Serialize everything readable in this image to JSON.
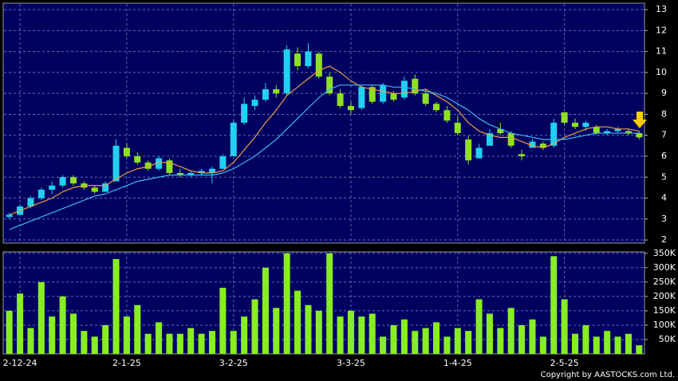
{
  "chart_data": [
    {
      "type": "candlestick",
      "ylim": [
        1.85,
        13.27
      ],
      "yticks": [
        2,
        3,
        4,
        5,
        6,
        7,
        8,
        9,
        10,
        11,
        12,
        13
      ],
      "grid": true,
      "up_color": "#22d0f0",
      "down_color": "#8ee022",
      "candles": [
        [
          3.1,
          3.3,
          3.0,
          3.2
        ],
        [
          3.2,
          3.7,
          3.2,
          3.6
        ],
        [
          3.6,
          4.1,
          3.5,
          4.0
        ],
        [
          4.0,
          4.5,
          3.9,
          4.4
        ],
        [
          4.4,
          4.8,
          4.2,
          4.6
        ],
        [
          4.6,
          5.1,
          4.5,
          5.0
        ],
        [
          5.0,
          5.1,
          4.6,
          4.7
        ],
        [
          4.7,
          4.8,
          4.4,
          4.5
        ],
        [
          4.5,
          4.6,
          4.2,
          4.3
        ],
        [
          4.3,
          4.8,
          4.3,
          4.7
        ],
        [
          4.8,
          6.8,
          4.8,
          6.5
        ],
        [
          6.4,
          6.6,
          5.9,
          6.0
        ],
        [
          6.0,
          6.2,
          5.6,
          5.7
        ],
        [
          5.7,
          5.8,
          5.3,
          5.4
        ],
        [
          5.4,
          6.0,
          5.3,
          5.9
        ],
        [
          5.8,
          5.9,
          5.1,
          5.2
        ],
        [
          5.2,
          5.4,
          5.0,
          5.1
        ],
        [
          5.1,
          5.3,
          5.0,
          5.2
        ],
        [
          5.2,
          5.4,
          5.1,
          5.3
        ],
        [
          5.2,
          5.5,
          4.7,
          5.4
        ],
        [
          5.4,
          6.1,
          5.4,
          6.0
        ],
        [
          6.0,
          7.7,
          6.0,
          7.6
        ],
        [
          7.6,
          8.8,
          7.5,
          8.5
        ],
        [
          8.4,
          8.9,
          8.2,
          8.7
        ],
        [
          8.7,
          9.5,
          8.6,
          9.2
        ],
        [
          9.2,
          9.4,
          8.8,
          9.0
        ],
        [
          9.0,
          11.3,
          8.9,
          11.1
        ],
        [
          10.9,
          11.2,
          10.1,
          10.3
        ],
        [
          10.3,
          11.4,
          10.2,
          11.0
        ],
        [
          10.9,
          11.0,
          9.7,
          9.8
        ],
        [
          9.8,
          10.0,
          8.9,
          9.0
        ],
        [
          9.0,
          9.2,
          8.3,
          8.4
        ],
        [
          8.4,
          8.6,
          8.0,
          8.2
        ],
        [
          8.3,
          9.4,
          8.2,
          9.3
        ],
        [
          9.3,
          9.4,
          8.5,
          8.6
        ],
        [
          8.6,
          9.5,
          8.5,
          9.4
        ],
        [
          9.0,
          9.1,
          8.6,
          8.7
        ],
        [
          8.8,
          9.8,
          8.7,
          9.6
        ],
        [
          9.7,
          9.9,
          8.9,
          9.0
        ],
        [
          9.0,
          9.2,
          8.4,
          8.5
        ],
        [
          8.5,
          8.6,
          8.1,
          8.2
        ],
        [
          8.2,
          8.4,
          7.6,
          7.7
        ],
        [
          7.6,
          7.9,
          7.0,
          7.1
        ],
        [
          6.8,
          7.0,
          5.6,
          5.8
        ],
        [
          5.9,
          6.6,
          5.9,
          6.4
        ],
        [
          6.5,
          7.3,
          6.5,
          7.1
        ],
        [
          7.3,
          7.6,
          7.0,
          7.1
        ],
        [
          7.1,
          7.2,
          6.4,
          6.5
        ],
        [
          6.1,
          6.3,
          5.8,
          6.0
        ],
        [
          6.4,
          6.8,
          6.4,
          6.7
        ],
        [
          6.6,
          6.7,
          6.3,
          6.4
        ],
        [
          6.5,
          7.8,
          6.4,
          7.6
        ],
        [
          8.1,
          8.1,
          7.5,
          7.6
        ],
        [
          7.6,
          7.8,
          7.3,
          7.4
        ],
        [
          7.4,
          7.7,
          7.2,
          7.6
        ],
        [
          7.4,
          7.5,
          7.0,
          7.1
        ],
        [
          7.1,
          7.3,
          7.0,
          7.2
        ],
        [
          7.2,
          7.4,
          7.1,
          7.3
        ],
        [
          7.2,
          7.3,
          7.0,
          7.1
        ],
        [
          7.1,
          7.2,
          6.8,
          6.9
        ]
      ],
      "series": [
        {
          "color": "#f0a040",
          "values": [
            3.2,
            3.4,
            3.6,
            3.8,
            4.0,
            4.3,
            4.5,
            4.6,
            4.6,
            4.6,
            4.9,
            5.2,
            5.4,
            5.5,
            5.7,
            5.7,
            5.5,
            5.3,
            5.2,
            5.2,
            5.3,
            5.7,
            6.3,
            6.9,
            7.6,
            8.2,
            8.9,
            9.3,
            9.7,
            10.1,
            10.3,
            10.0,
            9.6,
            9.3,
            9.2,
            9.1,
            9.0,
            9.0,
            9.1,
            9.2,
            8.9,
            8.6,
            8.2,
            7.6,
            7.2,
            7.0,
            6.9,
            6.9,
            6.7,
            6.5,
            6.4,
            6.6,
            6.9,
            7.1,
            7.3,
            7.4,
            7.4,
            7.3,
            7.3,
            7.2
          ]
        },
        {
          "color": "#40b8f0",
          "values": [
            2.5,
            2.7,
            2.9,
            3.1,
            3.3,
            3.5,
            3.7,
            3.9,
            4.1,
            4.2,
            4.4,
            4.6,
            4.8,
            4.9,
            5.0,
            5.1,
            5.1,
            5.1,
            5.1,
            5.1,
            5.2,
            5.4,
            5.7,
            6.0,
            6.4,
            6.8,
            7.3,
            7.8,
            8.3,
            8.8,
            9.2,
            9.4,
            9.4,
            9.4,
            9.4,
            9.4,
            9.3,
            9.3,
            9.2,
            9.1,
            9.0,
            8.8,
            8.5,
            8.2,
            7.8,
            7.5,
            7.3,
            7.1,
            7.0,
            6.9,
            6.8,
            6.8,
            6.8,
            6.9,
            7.0,
            7.1,
            7.1,
            7.1,
            7.1,
            7.1
          ]
        }
      ]
    },
    {
      "type": "bar",
      "categories": [
        null,
        "2-12-24",
        null,
        null,
        null,
        null,
        null,
        null,
        null,
        null,
        null,
        "2-1-25",
        null,
        null,
        null,
        null,
        null,
        null,
        null,
        null,
        null,
        "3-2-25",
        null,
        null,
        null,
        null,
        null,
        null,
        null,
        null,
        null,
        null,
        "3-3-25",
        null,
        null,
        null,
        null,
        null,
        null,
        null,
        null,
        null,
        "1-4-25",
        null,
        null,
        null,
        null,
        null,
        null,
        null,
        null,
        null,
        "2-5-25",
        null,
        null,
        null,
        null,
        null,
        null,
        null
      ],
      "ylim": [
        0,
        355000
      ],
      "yticks": [
        {
          "value": 50000,
          "label": "50K"
        },
        {
          "value": 100000,
          "label": "100K"
        },
        {
          "value": 150000,
          "label": "150K"
        },
        {
          "value": 200000,
          "label": "200K"
        },
        {
          "value": 250000,
          "label": "250K"
        },
        {
          "value": 300000,
          "label": "300K"
        },
        {
          "value": 350000,
          "label": "350K"
        }
      ],
      "grid": true,
      "color": "#88ee22",
      "values": [
        150000,
        210000,
        90000,
        250000,
        130000,
        200000,
        140000,
        80000,
        60000,
        100000,
        330000,
        130000,
        170000,
        70000,
        110000,
        70000,
        70000,
        90000,
        70000,
        80000,
        230000,
        80000,
        130000,
        190000,
        300000,
        160000,
        350000,
        220000,
        170000,
        150000,
        350000,
        130000,
        150000,
        130000,
        140000,
        60000,
        100000,
        120000,
        80000,
        90000,
        110000,
        60000,
        90000,
        80000,
        190000,
        140000,
        90000,
        160000,
        100000,
        120000,
        60000,
        340000,
        190000,
        70000,
        100000,
        60000,
        80000,
        60000,
        70000,
        30000
      ]
    }
  ],
  "footer": "Copyright by AASTOCKS.com Ltd."
}
